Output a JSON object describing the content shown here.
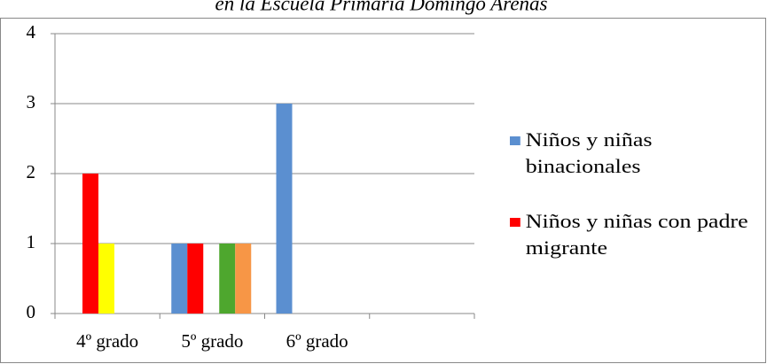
{
  "chart_data": {
    "type": "bar",
    "title": "en la Escuela Primaria Domingo Arenas",
    "categories": [
      "4º grado",
      "5º grado",
      "6º grado",
      null
    ],
    "series": [
      {
        "name": "Niños y niñas binacionales",
        "color": "#5b8fd0",
        "values": [
          0,
          1,
          3,
          0
        ]
      },
      {
        "name": "Niños y niñas con padre migrante",
        "color": "#ff0000",
        "values": [
          2,
          1,
          0,
          0
        ]
      },
      {
        "color": "#ffff00",
        "values": [
          1,
          0,
          0,
          0
        ]
      },
      {
        "color": "#4ea72e",
        "values": [
          0,
          1,
          0,
          0
        ]
      },
      {
        "color": "#f79646",
        "values": [
          0,
          1,
          0,
          0
        ]
      }
    ],
    "ylim": [
      0,
      4
    ],
    "yticks": [
      0,
      1,
      2,
      3,
      4
    ],
    "grid": true,
    "legend": "right"
  }
}
